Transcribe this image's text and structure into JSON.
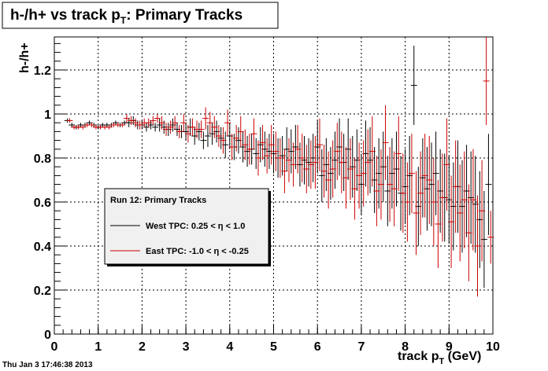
{
  "chart_data": {
    "type": "scatter",
    "title": "h-/h+ vs track p",
    "title_sub": "T",
    "title_suffix": ": Primary Tracks",
    "xlabel": "track p",
    "xlabel_sub": "T",
    "xlabel_suffix": " (GeV)",
    "ylabel": "h-/h+",
    "xlim": [
      0,
      10
    ],
    "ylim": [
      0,
      1.35
    ],
    "x_ticks": [
      0,
      1,
      2,
      3,
      4,
      5,
      6,
      7,
      8,
      9,
      10
    ],
    "y_ticks": [
      0,
      0.2,
      0.4,
      0.6,
      0.8,
      1,
      1.2
    ],
    "y_tick_labels": [
      "0",
      "0.2",
      "0.4",
      "0.6",
      "0.8",
      "1",
      "1.2"
    ],
    "grid": true,
    "legend": {
      "title": "Run 12: Primary Tracks",
      "placement": "center-left"
    },
    "series": [
      {
        "name": "West TPC: 0.25 < η < 1.0",
        "color": "#000000",
        "x": [
          0.3,
          0.4,
          0.5,
          0.6,
          0.7,
          0.8,
          0.9,
          1.0,
          1.1,
          1.2,
          1.3,
          1.4,
          1.5,
          1.6,
          1.7,
          1.8,
          1.9,
          2.0,
          2.1,
          2.2,
          2.3,
          2.4,
          2.5,
          2.6,
          2.7,
          2.8,
          2.9,
          3.0,
          3.1,
          3.2,
          3.3,
          3.4,
          3.5,
          3.6,
          3.7,
          3.8,
          3.9,
          4.0,
          4.1,
          4.2,
          4.3,
          4.4,
          4.5,
          4.6,
          4.7,
          4.8,
          4.9,
          5.0,
          5.1,
          5.2,
          5.3,
          5.4,
          5.5,
          5.6,
          5.7,
          5.8,
          5.9,
          6.0,
          6.1,
          6.2,
          6.3,
          6.4,
          6.5,
          6.6,
          6.7,
          6.8,
          6.9,
          7.0,
          7.1,
          7.2,
          7.3,
          7.4,
          7.5,
          7.6,
          7.7,
          7.8,
          7.9,
          8.0,
          8.1,
          8.2,
          8.3,
          8.4,
          8.5,
          8.6,
          8.7,
          8.8,
          8.9,
          9.0,
          9.1,
          9.2,
          9.3,
          9.4,
          9.5,
          9.6,
          9.7,
          9.8,
          9.9
        ],
        "y": [
          0.97,
          0.95,
          0.94,
          0.95,
          0.95,
          0.96,
          0.95,
          0.94,
          0.95,
          0.95,
          0.95,
          0.96,
          0.95,
          0.96,
          0.96,
          0.97,
          0.95,
          0.95,
          0.94,
          0.95,
          0.94,
          0.95,
          0.94,
          0.93,
          0.95,
          0.93,
          0.92,
          0.92,
          0.94,
          0.9,
          0.92,
          0.88,
          0.9,
          0.91,
          0.92,
          0.89,
          0.86,
          0.9,
          0.85,
          0.88,
          0.85,
          0.83,
          0.84,
          0.82,
          0.86,
          0.84,
          0.83,
          0.82,
          0.8,
          0.81,
          0.84,
          0.83,
          0.85,
          0.77,
          0.79,
          0.78,
          0.8,
          0.85,
          0.72,
          0.77,
          0.73,
          0.79,
          0.85,
          0.78,
          0.84,
          0.76,
          0.79,
          0.68,
          0.82,
          0.79,
          0.7,
          0.73,
          0.76,
          0.65,
          0.73,
          0.75,
          0.64,
          0.67,
          0.72,
          1.13,
          0.58,
          0.71,
          0.66,
          0.68,
          0.73,
          0.65,
          0.62,
          0.61,
          0.58,
          0.67,
          0.58,
          0.65,
          0.62,
          0.59,
          0.52,
          0.43,
          0.68
        ],
        "err": [
          0.01,
          0.01,
          0.01,
          0.01,
          0.01,
          0.01,
          0.01,
          0.01,
          0.01,
          0.01,
          0.01,
          0.01,
          0.01,
          0.01,
          0.02,
          0.02,
          0.02,
          0.02,
          0.02,
          0.02,
          0.02,
          0.03,
          0.03,
          0.03,
          0.03,
          0.03,
          0.03,
          0.04,
          0.04,
          0.04,
          0.04,
          0.04,
          0.05,
          0.05,
          0.05,
          0.05,
          0.06,
          0.06,
          0.06,
          0.06,
          0.07,
          0.07,
          0.07,
          0.07,
          0.08,
          0.08,
          0.08,
          0.09,
          0.09,
          0.09,
          0.1,
          0.1,
          0.1,
          0.1,
          0.11,
          0.11,
          0.11,
          0.12,
          0.12,
          0.12,
          0.12,
          0.13,
          0.13,
          0.13,
          0.14,
          0.14,
          0.14,
          0.14,
          0.15,
          0.15,
          0.15,
          0.16,
          0.16,
          0.16,
          0.16,
          0.17,
          0.17,
          0.17,
          0.18,
          0.18,
          0.18,
          0.18,
          0.19,
          0.19,
          0.19,
          0.19,
          0.2,
          0.2,
          0.2,
          0.21,
          0.21,
          0.21,
          0.21,
          0.22,
          0.22,
          0.22,
          0.23
        ]
      },
      {
        "name": "East TPC: -1.0 < η < -0.25",
        "color": "#cc0000",
        "x": [
          0.35,
          0.45,
          0.55,
          0.65,
          0.75,
          0.85,
          0.95,
          1.05,
          1.15,
          1.25,
          1.35,
          1.45,
          1.55,
          1.65,
          1.75,
          1.85,
          1.95,
          2.05,
          2.15,
          2.25,
          2.35,
          2.45,
          2.55,
          2.65,
          2.75,
          2.85,
          2.95,
          3.05,
          3.15,
          3.25,
          3.35,
          3.45,
          3.55,
          3.65,
          3.75,
          3.85,
          3.95,
          4.05,
          4.15,
          4.25,
          4.35,
          4.45,
          4.55,
          4.65,
          4.75,
          4.85,
          4.95,
          5.05,
          5.15,
          5.25,
          5.35,
          5.45,
          5.55,
          5.65,
          5.75,
          5.85,
          5.95,
          6.05,
          6.15,
          6.25,
          6.35,
          6.45,
          6.55,
          6.65,
          6.75,
          6.85,
          6.95,
          7.05,
          7.15,
          7.25,
          7.35,
          7.45,
          7.55,
          7.65,
          7.75,
          7.85,
          7.95,
          8.05,
          8.15,
          8.25,
          8.35,
          8.45,
          8.55,
          8.65,
          8.75,
          8.85,
          8.95,
          9.05,
          9.15,
          9.25,
          9.35,
          9.45,
          9.55,
          9.65,
          9.75,
          9.85,
          9.95
        ],
        "y": [
          0.97,
          0.94,
          0.94,
          0.94,
          0.95,
          0.95,
          0.94,
          0.94,
          0.94,
          0.94,
          0.95,
          0.95,
          0.95,
          0.98,
          0.97,
          0.96,
          0.95,
          0.96,
          0.96,
          0.97,
          0.98,
          0.96,
          0.93,
          0.94,
          0.96,
          0.92,
          0.96,
          0.91,
          0.94,
          0.93,
          0.93,
          0.98,
          0.96,
          0.94,
          0.9,
          0.88,
          0.96,
          0.85,
          0.89,
          0.92,
          0.86,
          0.84,
          0.91,
          0.8,
          0.87,
          0.81,
          0.86,
          0.83,
          0.8,
          0.74,
          0.79,
          0.77,
          0.84,
          0.8,
          0.75,
          0.77,
          0.78,
          0.86,
          0.74,
          0.7,
          0.75,
          0.83,
          0.78,
          0.71,
          0.75,
          0.66,
          0.72,
          0.73,
          0.78,
          0.83,
          0.65,
          0.68,
          0.87,
          0.68,
          0.66,
          0.82,
          0.64,
          0.6,
          0.73,
          0.55,
          0.64,
          0.72,
          0.7,
          0.6,
          0.5,
          0.62,
          0.77,
          0.51,
          0.67,
          0.55,
          0.61,
          0.46,
          0.61,
          0.4,
          0.56,
          1.15,
          0.44
        ],
        "err": [
          0.01,
          0.01,
          0.01,
          0.01,
          0.01,
          0.01,
          0.01,
          0.01,
          0.01,
          0.01,
          0.01,
          0.01,
          0.01,
          0.02,
          0.02,
          0.02,
          0.02,
          0.02,
          0.02,
          0.02,
          0.02,
          0.03,
          0.03,
          0.03,
          0.03,
          0.03,
          0.04,
          0.04,
          0.04,
          0.04,
          0.04,
          0.05,
          0.05,
          0.05,
          0.05,
          0.06,
          0.06,
          0.06,
          0.06,
          0.07,
          0.07,
          0.07,
          0.07,
          0.08,
          0.08,
          0.08,
          0.09,
          0.09,
          0.09,
          0.1,
          0.1,
          0.1,
          0.11,
          0.11,
          0.11,
          0.11,
          0.12,
          0.12,
          0.12,
          0.13,
          0.13,
          0.13,
          0.14,
          0.14,
          0.14,
          0.14,
          0.15,
          0.15,
          0.15,
          0.16,
          0.16,
          0.16,
          0.17,
          0.17,
          0.17,
          0.17,
          0.18,
          0.18,
          0.18,
          0.19,
          0.19,
          0.19,
          0.2,
          0.2,
          0.2,
          0.2,
          0.21,
          0.21,
          0.21,
          0.22,
          0.22,
          0.22,
          0.23,
          0.23,
          0.23,
          0.2,
          0.12
        ]
      }
    ]
  },
  "footer": {
    "timestamp": "Thu Jan  3 17:46:38 2013"
  }
}
